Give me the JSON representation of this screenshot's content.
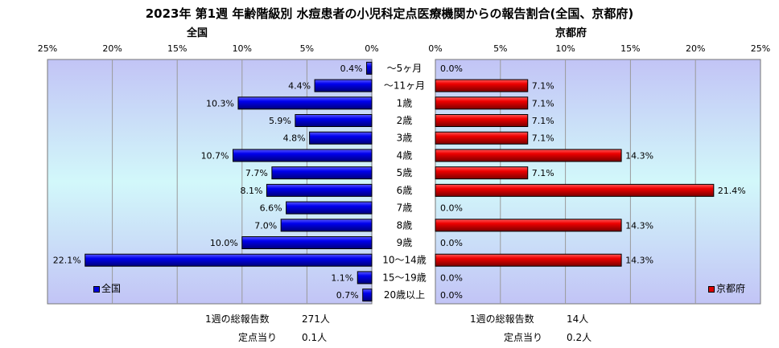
{
  "title": "2023年 第1週 年齢階級別 水痘患者の小児科定点医療機関からの報告割合(全国、京都府)",
  "colors": {
    "nation": "#0000e0",
    "kyoto": "#dd0000",
    "text": "#000000"
  },
  "chart_data": {
    "type": "bar",
    "orientation": "horizontal-butterfly",
    "categories": [
      "～5ヶ月",
      "～11ヶ月",
      "1歳",
      "2歳",
      "3歳",
      "4歳",
      "5歳",
      "6歳",
      "7歳",
      "8歳",
      "9歳",
      "10～14歳",
      "15～19歳",
      "20歳以上"
    ],
    "series": [
      {
        "name": "全国",
        "values": [
          0.4,
          4.4,
          10.3,
          5.9,
          4.8,
          10.7,
          7.7,
          8.1,
          6.6,
          7.0,
          10.0,
          22.1,
          1.1,
          0.7
        ],
        "labels": [
          "0.4%",
          "4.4%",
          "10.3%",
          "5.9%",
          "4.8%",
          "10.7%",
          "7.7%",
          "8.1%",
          "6.6%",
          "7.0%",
          "10.0%",
          "22.1%",
          "1.1%",
          "0.7%"
        ]
      },
      {
        "name": "京都府",
        "values": [
          0.0,
          7.1,
          7.1,
          7.1,
          7.1,
          14.3,
          7.1,
          21.4,
          0.0,
          14.3,
          0.0,
          14.3,
          0.0,
          0.0
        ],
        "labels": [
          "0.0%",
          "7.1%",
          "7.1%",
          "7.1%",
          "7.1%",
          "14.3%",
          "7.1%",
          "21.4%",
          "0.0%",
          "14.3%",
          "0.0%",
          "14.3%",
          "0.0%",
          "0.0%"
        ]
      }
    ],
    "xlim": [
      0,
      25
    ],
    "ticks": [
      0,
      5,
      10,
      15,
      20,
      25
    ],
    "left_ticks": [
      "25%",
      "20%",
      "15%",
      "10%",
      "5%",
      "0%"
    ],
    "right_ticks": [
      "0%",
      "5%",
      "10%",
      "15%",
      "20%",
      "25%"
    ],
    "grid": true,
    "legend": "bottom-corners"
  },
  "panels": {
    "nation": {
      "title": "全国",
      "legend": "全国",
      "stat_total_label": "1週の総報告数",
      "stat_total_value": "271人",
      "stat_per_label": "定点当り",
      "stat_per_value": "0.1人"
    },
    "kyoto": {
      "title": "京都府",
      "legend": "京都府",
      "stat_total_label": "1週の総報告数",
      "stat_total_value": "14人",
      "stat_per_label": "定点当り",
      "stat_per_value": "0.2人"
    }
  }
}
